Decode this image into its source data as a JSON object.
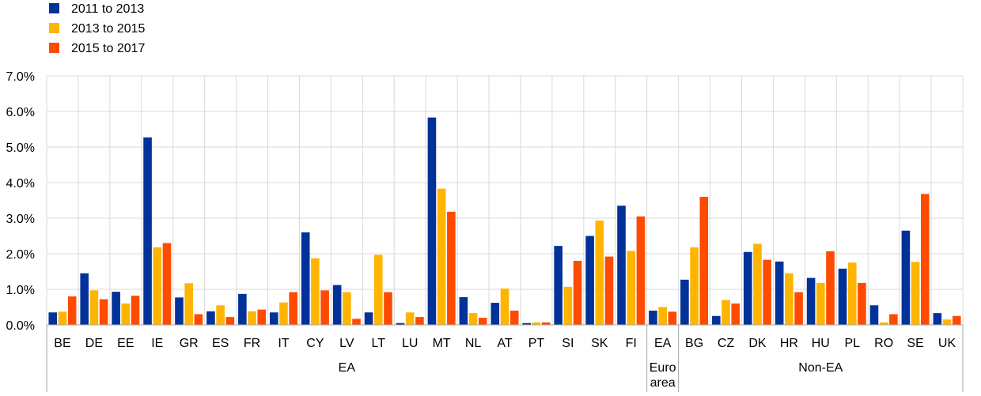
{
  "chart_data": {
    "type": "bar",
    "ylim": [
      0,
      7
    ],
    "y_ticks": [
      "0.0%",
      "1.0%",
      "2.0%",
      "3.0%",
      "4.0%",
      "5.0%",
      "6.0%",
      "7.0%"
    ],
    "grid": true,
    "legend_position": "top-left",
    "categories": [
      "BE",
      "DE",
      "EE",
      "IE",
      "GR",
      "ES",
      "FR",
      "IT",
      "CY",
      "LV",
      "LT",
      "LU",
      "MT",
      "NL",
      "AT",
      "PT",
      "SI",
      "SK",
      "FI",
      "EA",
      "BG",
      "CZ",
      "DK",
      "HR",
      "HU",
      "PL",
      "RO",
      "SE",
      "UK"
    ],
    "groups": [
      {
        "label": "EA",
        "start": 0,
        "end": 18
      },
      {
        "label_lines": [
          "Euro",
          "area"
        ],
        "start": 19,
        "end": 19
      },
      {
        "label": "Non-EA",
        "start": 20,
        "end": 28
      }
    ],
    "series": [
      {
        "name": "2011 to 2013",
        "color": "#003299",
        "values": [
          0.35,
          1.45,
          0.93,
          5.27,
          0.77,
          0.38,
          0.87,
          0.35,
          2.6,
          1.12,
          0.35,
          0.05,
          5.83,
          0.78,
          0.62,
          0.05,
          2.22,
          2.5,
          3.35,
          0.4,
          1.27,
          0.25,
          2.05,
          1.78,
          1.32,
          1.58,
          0.55,
          2.65,
          0.33
        ]
      },
      {
        "name": "2013 to 2015",
        "color": "#FFB400",
        "values": [
          0.37,
          0.97,
          0.6,
          2.18,
          1.17,
          0.55,
          0.38,
          0.63,
          1.87,
          0.92,
          1.97,
          0.35,
          3.83,
          0.33,
          1.02,
          0.07,
          1.07,
          2.93,
          2.08,
          0.5,
          2.18,
          0.7,
          2.28,
          1.45,
          1.18,
          1.75,
          0.07,
          1.77,
          0.15
        ]
      },
      {
        "name": "2015 to 2017",
        "color": "#FF4B00",
        "values": [
          0.8,
          0.72,
          0.82,
          2.3,
          0.3,
          0.22,
          0.43,
          0.92,
          0.97,
          0.17,
          0.92,
          0.22,
          3.18,
          0.2,
          0.4,
          0.07,
          1.8,
          1.92,
          3.05,
          0.37,
          3.6,
          0.6,
          1.83,
          0.92,
          2.07,
          1.18,
          0.3,
          3.68,
          0.25
        ]
      }
    ]
  }
}
